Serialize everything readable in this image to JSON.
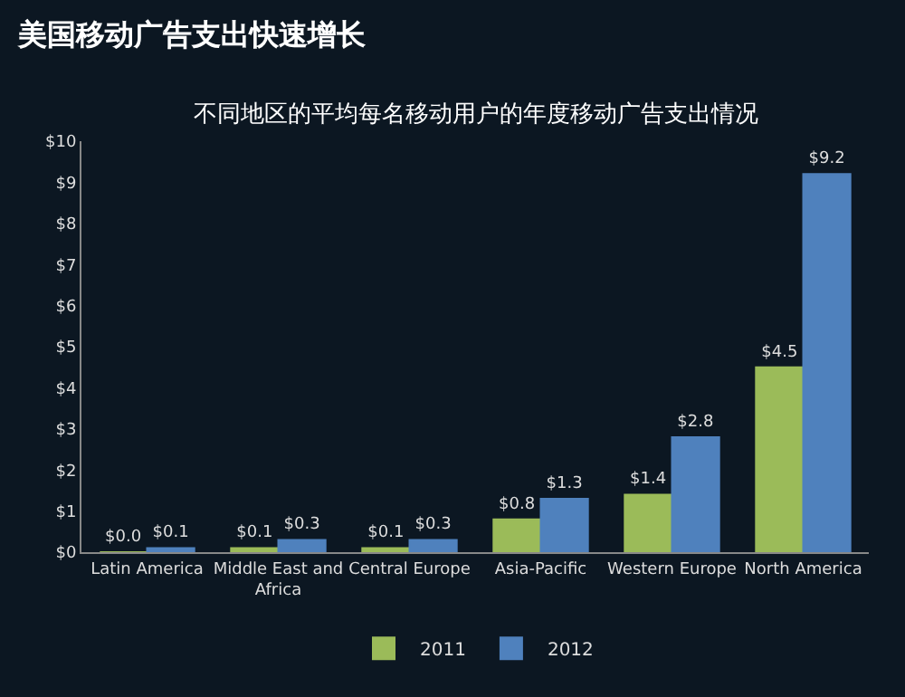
{
  "chart_data": {
    "type": "bar",
    "title": "美国移动广告支出快速增长",
    "subtitle": "不同地区的平均每名移动用户的年度移动广告支出情况",
    "categories": [
      "Latin America",
      "Middle East and Africa",
      "Central Europe",
      "Asia-Pacific",
      "Western Europe",
      "North America"
    ],
    "series": [
      {
        "name": "2011",
        "color": "#9bbb59",
        "values": [
          0.0,
          0.1,
          0.1,
          0.8,
          1.4,
          4.5
        ],
        "value_labels": [
          "$0.0",
          "$0.1",
          "$0.1",
          "$0.8",
          "$1.4",
          "$4.5"
        ]
      },
      {
        "name": "2012",
        "color": "#4f81bd",
        "values": [
          0.1,
          0.3,
          0.3,
          1.3,
          2.8,
          9.2
        ],
        "value_labels": [
          "$0.1",
          "$0.3",
          "$0.3",
          "$1.3",
          "$2.8",
          "$9.2"
        ]
      }
    ],
    "ylim": [
      0,
      10
    ],
    "yticks": [
      {
        "value": 0,
        "label": "$0"
      },
      {
        "value": 1,
        "label": "$1"
      },
      {
        "value": 2,
        "label": "$2"
      },
      {
        "value": 3,
        "label": "$3"
      },
      {
        "value": 4,
        "label": "$4"
      },
      {
        "value": 5,
        "label": "$5"
      },
      {
        "value": 6,
        "label": "$6"
      },
      {
        "value": 7,
        "label": "$7"
      },
      {
        "value": 8,
        "label": "$8"
      },
      {
        "value": 9,
        "label": "$9"
      },
      {
        "value": 10,
        "label": "$10"
      }
    ],
    "grid": false,
    "legend": "bottom"
  }
}
